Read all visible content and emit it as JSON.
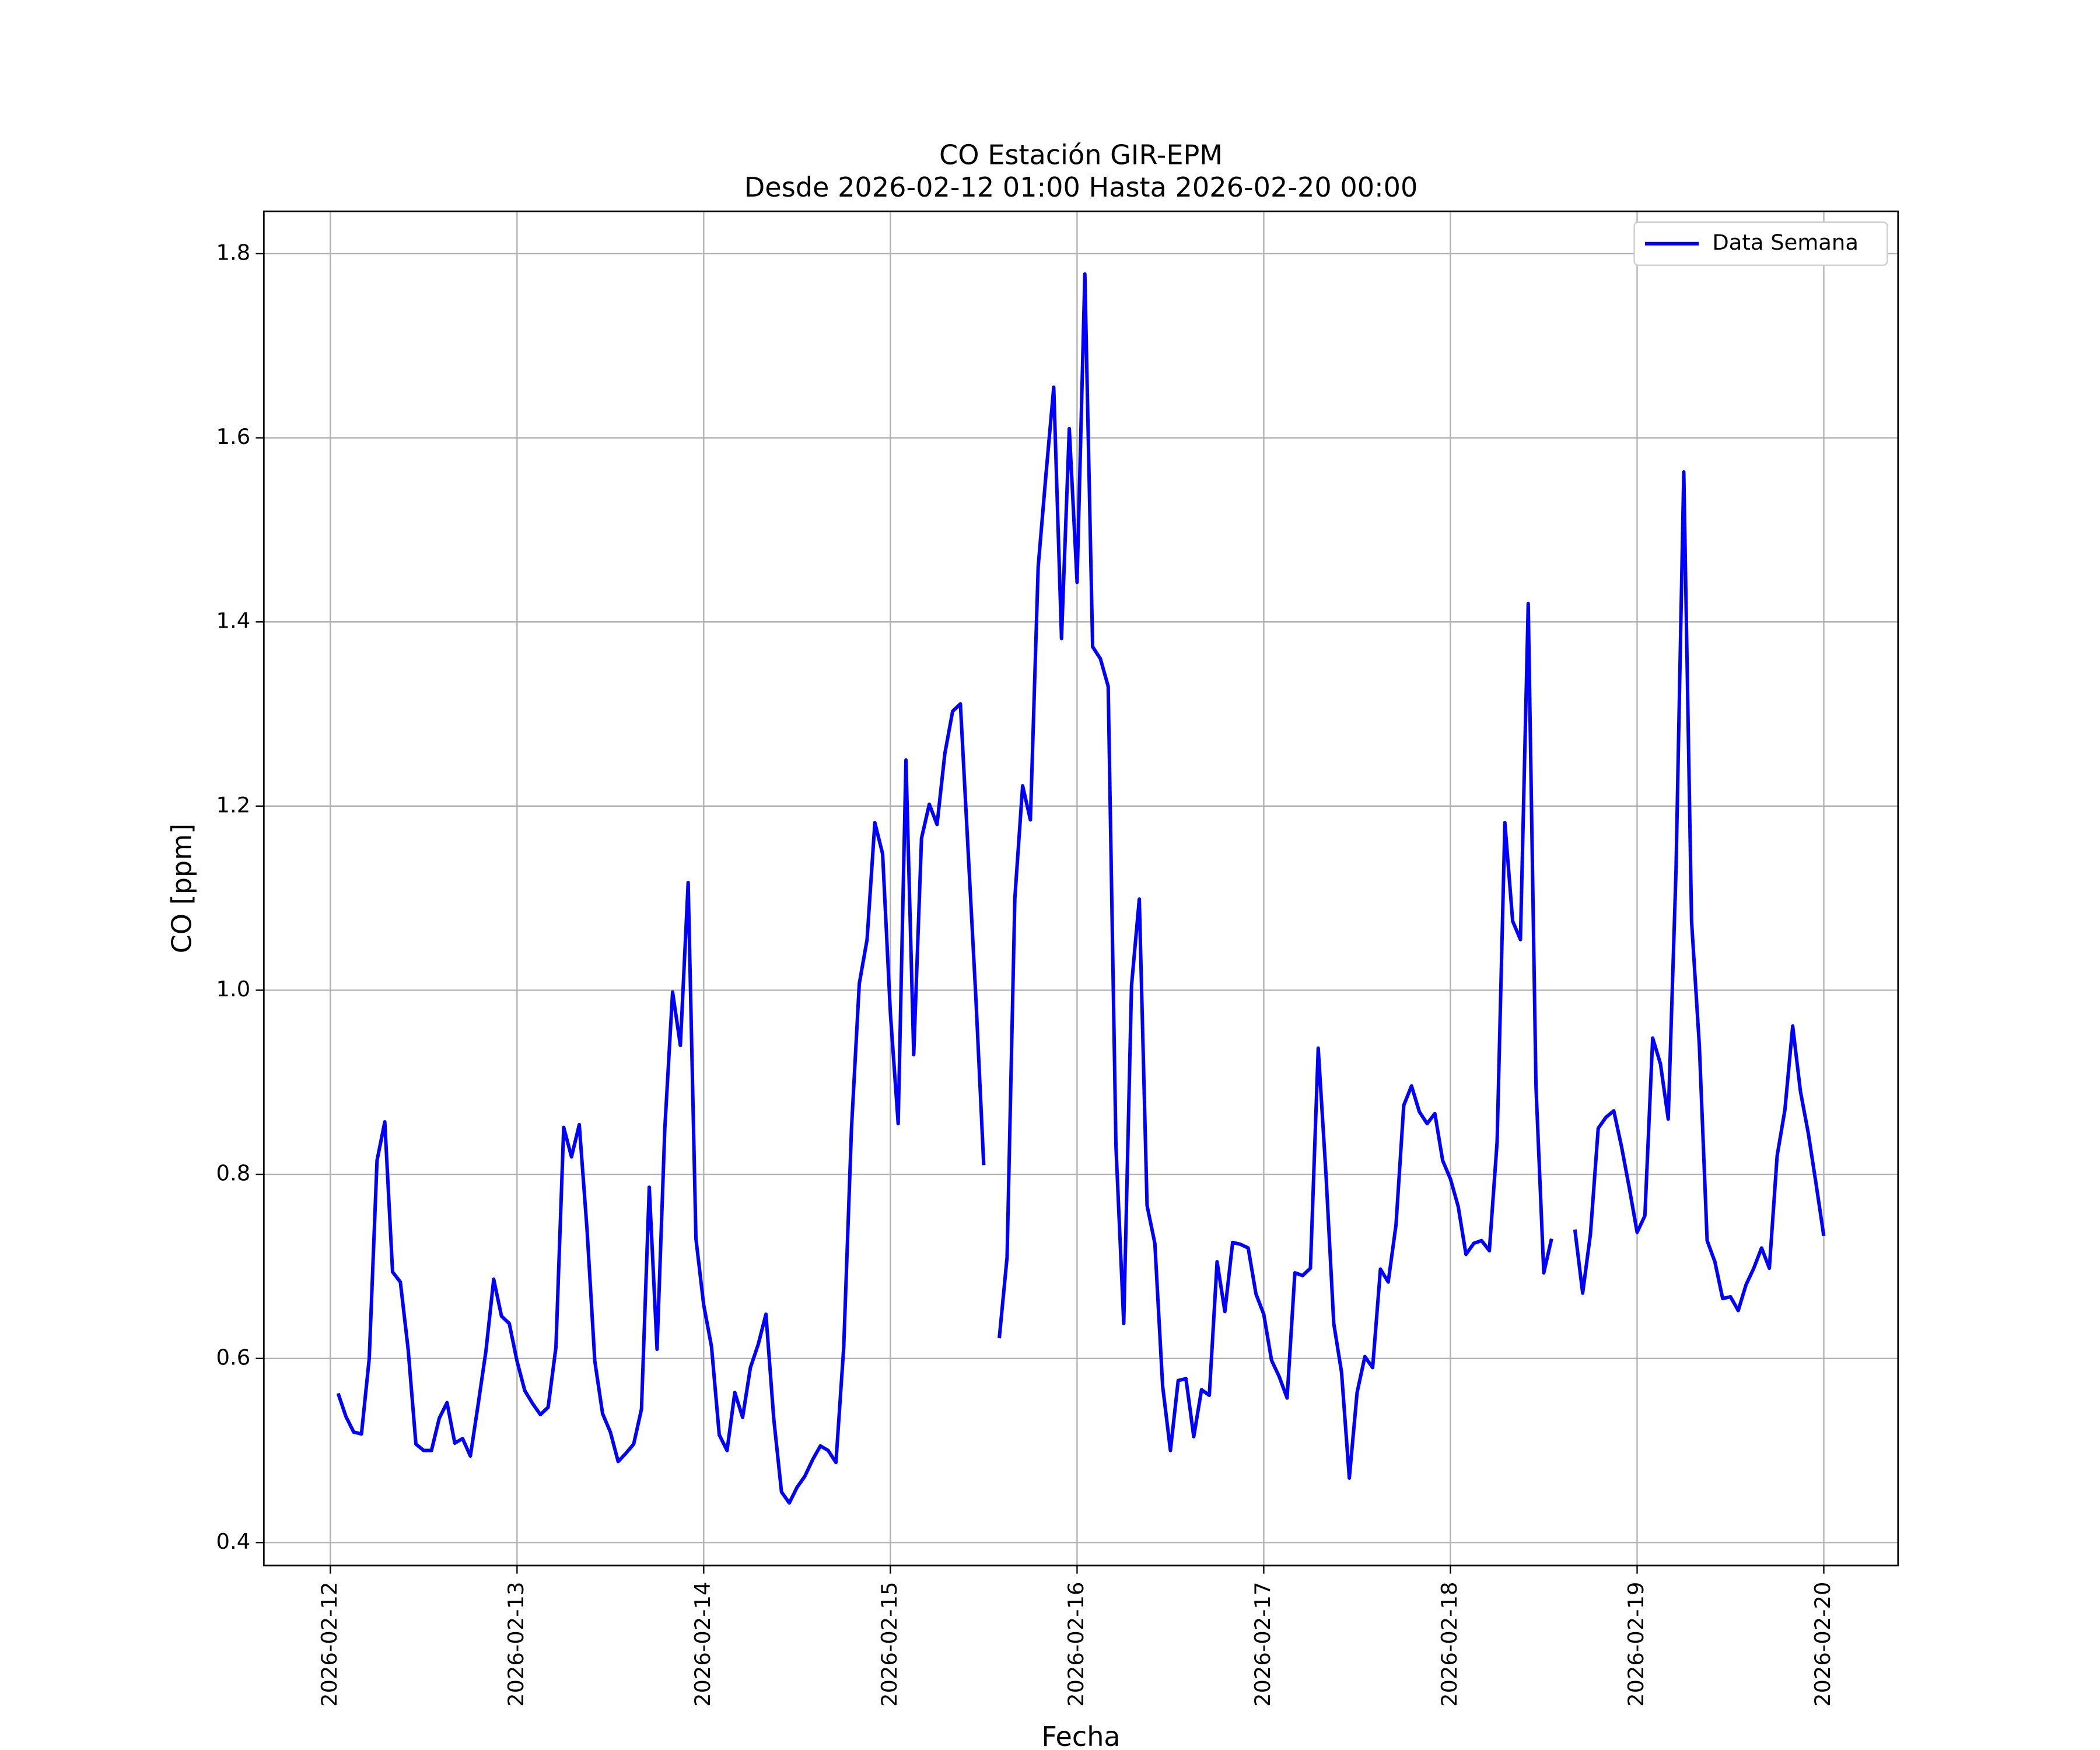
{
  "chart_data": {
    "type": "line",
    "title": "CO Estación GIR-EPM",
    "subtitle": "Desde 2026-02-12 01:00 Hasta 2026-02-20 00:00",
    "x_label": "Fecha",
    "y_label": "CO [ppm]",
    "grid": true,
    "legend": "upper right",
    "xlim": [
      "2026-02-11 15:27",
      "2026-02-20 09:33"
    ],
    "xticks": [
      "2026-02-12",
      "2026-02-13",
      "2026-02-14",
      "2026-02-15",
      "2026-02-16",
      "2026-02-17",
      "2026-02-18",
      "2026-02-19",
      "2026-02-20"
    ],
    "ylim": [
      0.375,
      1.846
    ],
    "yticks": [
      0.4,
      0.6,
      0.8,
      {
        "value": 1,
        "label": "1.0"
      },
      1.2,
      1.4,
      1.6,
      1.8
    ],
    "x": [
      "2026-02-12 01:00",
      "2026-02-12 02:00",
      "2026-02-12 03:00",
      "2026-02-12 04:00",
      "2026-02-12 05:00",
      "2026-02-12 06:00",
      "2026-02-12 07:00",
      "2026-02-12 08:00",
      "2026-02-12 09:00",
      "2026-02-12 10:00",
      "2026-02-12 11:00",
      "2026-02-12 12:00",
      "2026-02-12 13:00",
      "2026-02-12 14:00",
      "2026-02-12 15:00",
      "2026-02-12 16:00",
      "2026-02-12 17:00",
      "2026-02-12 18:00",
      "2026-02-12 19:00",
      "2026-02-12 20:00",
      "2026-02-12 21:00",
      "2026-02-12 22:00",
      "2026-02-12 23:00",
      "2026-02-13 00:00",
      "2026-02-13 01:00",
      "2026-02-13 02:00",
      "2026-02-13 03:00",
      "2026-02-13 04:00",
      "2026-02-13 05:00",
      "2026-02-13 06:00",
      "2026-02-13 07:00",
      "2026-02-13 08:00",
      "2026-02-13 09:00",
      "2026-02-13 10:00",
      "2026-02-13 11:00",
      "2026-02-13 12:00",
      "2026-02-13 13:00",
      "2026-02-13 14:00",
      "2026-02-13 15:00",
      "2026-02-13 16:00",
      "2026-02-13 17:00",
      "2026-02-13 18:00",
      "2026-02-13 19:00",
      "2026-02-13 20:00",
      "2026-02-13 21:00",
      "2026-02-13 22:00",
      "2026-02-13 23:00",
      "2026-02-14 00:00",
      "2026-02-14 01:00",
      "2026-02-14 02:00",
      "2026-02-14 03:00",
      "2026-02-14 04:00",
      "2026-02-14 05:00",
      "2026-02-14 06:00",
      "2026-02-14 07:00",
      "2026-02-14 08:00",
      "2026-02-14 09:00",
      "2026-02-14 10:00",
      "2026-02-14 11:00",
      "2026-02-14 12:00",
      "2026-02-14 13:00",
      "2026-02-14 14:00",
      "2026-02-14 15:00",
      "2026-02-14 16:00",
      "2026-02-14 17:00",
      "2026-02-14 18:00",
      "2026-02-14 19:00",
      "2026-02-14 20:00",
      "2026-02-14 21:00",
      "2026-02-14 22:00",
      "2026-02-14 23:00",
      "2026-02-15 00:00",
      "2026-02-15 01:00",
      "2026-02-15 02:00",
      "2026-02-15 03:00",
      "2026-02-15 04:00",
      "2026-02-15 05:00",
      "2026-02-15 06:00",
      "2026-02-15 07:00",
      "2026-02-15 08:00",
      "2026-02-15 09:00",
      "2026-02-15 10:00",
      "2026-02-15 11:00",
      "2026-02-15 12:00",
      "2026-02-15 13:00",
      "2026-02-15 14:00",
      "2026-02-15 15:00",
      "2026-02-15 16:00",
      "2026-02-15 17:00",
      "2026-02-15 18:00",
      "2026-02-15 19:00",
      "2026-02-15 20:00",
      "2026-02-15 21:00",
      "2026-02-15 22:00",
      "2026-02-15 23:00",
      "2026-02-16 00:00",
      "2026-02-16 01:00",
      "2026-02-16 02:00",
      "2026-02-16 03:00",
      "2026-02-16 04:00",
      "2026-02-16 05:00",
      "2026-02-16 06:00",
      "2026-02-16 07:00",
      "2026-02-16 08:00",
      "2026-02-16 09:00",
      "2026-02-16 10:00",
      "2026-02-16 11:00",
      "2026-02-16 12:00",
      "2026-02-16 13:00",
      "2026-02-16 14:00",
      "2026-02-16 15:00",
      "2026-02-16 16:00",
      "2026-02-16 17:00",
      "2026-02-16 18:00",
      "2026-02-16 19:00",
      "2026-02-16 20:00",
      "2026-02-16 21:00",
      "2026-02-16 22:00",
      "2026-02-16 23:00",
      "2026-02-17 00:00",
      "2026-02-17 01:00",
      "2026-02-17 02:00",
      "2026-02-17 03:00",
      "2026-02-17 04:00",
      "2026-02-17 05:00",
      "2026-02-17 06:00",
      "2026-02-17 07:00",
      "2026-02-17 08:00",
      "2026-02-17 09:00",
      "2026-02-17 10:00",
      "2026-02-17 11:00",
      "2026-02-17 12:00",
      "2026-02-17 13:00",
      "2026-02-17 14:00",
      "2026-02-17 15:00",
      "2026-02-17 16:00",
      "2026-02-17 17:00",
      "2026-02-17 18:00",
      "2026-02-17 19:00",
      "2026-02-17 20:00",
      "2026-02-17 21:00",
      "2026-02-17 22:00",
      "2026-02-17 23:00",
      "2026-02-18 00:00",
      "2026-02-18 01:00",
      "2026-02-18 02:00",
      "2026-02-18 03:00",
      "2026-02-18 04:00",
      "2026-02-18 05:00",
      "2026-02-18 06:00",
      "2026-02-18 07:00",
      "2026-02-18 08:00",
      "2026-02-18 09:00",
      "2026-02-18 10:00",
      "2026-02-18 11:00",
      "2026-02-18 12:00",
      "2026-02-18 13:00",
      "2026-02-18 14:00",
      "2026-02-18 15:00",
      "2026-02-18 16:00",
      "2026-02-18 17:00",
      "2026-02-18 18:00",
      "2026-02-18 19:00",
      "2026-02-18 20:00",
      "2026-02-18 21:00",
      "2026-02-18 22:00",
      "2026-02-18 23:00",
      "2026-02-19 00:00",
      "2026-02-19 01:00",
      "2026-02-19 02:00",
      "2026-02-19 03:00",
      "2026-02-19 04:00",
      "2026-02-19 05:00",
      "2026-02-19 06:00",
      "2026-02-19 07:00",
      "2026-02-19 08:00",
      "2026-02-19 09:00",
      "2026-02-19 10:00",
      "2026-02-19 11:00",
      "2026-02-19 12:00",
      "2026-02-19 13:00",
      "2026-02-19 14:00",
      "2026-02-19 15:00",
      "2026-02-19 16:00",
      "2026-02-19 17:00",
      "2026-02-19 18:00",
      "2026-02-19 19:00",
      "2026-02-19 20:00",
      "2026-02-19 21:00",
      "2026-02-19 22:00",
      "2026-02-19 23:00",
      "2026-02-20 00:00"
    ],
    "series": [
      {
        "name": "Data Semana",
        "color": "#0000ff",
        "values": [
          0.562,
          0.537,
          0.52,
          0.518,
          0.6,
          0.815,
          0.857,
          0.694,
          0.683,
          0.61,
          0.507,
          0.5,
          0.5,
          0.535,
          0.552,
          0.508,
          0.513,
          0.494,
          0.55,
          0.608,
          0.686,
          0.646,
          0.638,
          0.597,
          0.565,
          0.551,
          0.539,
          0.547,
          0.612,
          0.851,
          0.819,
          0.854,
          0.74,
          0.597,
          0.54,
          0.52,
          0.488,
          0.497,
          0.507,
          0.545,
          0.786,
          0.61,
          0.85,
          0.998,
          0.94,
          1.117,
          0.73,
          0.658,
          0.613,
          0.517,
          0.5,
          0.563,
          0.536,
          0.59,
          0.615,
          0.648,
          0.535,
          0.455,
          0.443,
          0.46,
          0.472,
          0.49,
          0.505,
          0.5,
          0.487,
          0.612,
          0.85,
          1.007,
          1.055,
          1.182,
          1.148,
          0.975,
          0.855,
          1.25,
          0.93,
          1.165,
          1.202,
          1.18,
          1.257,
          1.303,
          1.311,
          1.15,
          0.99,
          0.81,
          null,
          0.622,
          0.71,
          1.1,
          1.222,
          1.185,
          1.46,
          1.56,
          1.655,
          1.382,
          1.61,
          1.443,
          1.778,
          1.373,
          1.36,
          1.33,
          0.83,
          0.638,
          1.005,
          1.099,
          0.766,
          0.725,
          0.57,
          0.5,
          0.576,
          0.578,
          0.515,
          0.566,
          0.56,
          0.705,
          0.651,
          0.726,
          0.724,
          0.72,
          0.67,
          0.648,
          0.598,
          0.58,
          0.557,
          0.693,
          0.69,
          0.698,
          0.937,
          0.8,
          0.638,
          0.585,
          0.47,
          0.563,
          0.602,
          0.59,
          0.697,
          0.683,
          0.745,
          0.875,
          0.896,
          0.868,
          0.855,
          0.866,
          0.815,
          0.795,
          0.765,
          0.713,
          0.725,
          0.728,
          0.717,
          0.835,
          1.182,
          1.075,
          1.055,
          1.42,
          0.895,
          0.693,
          0.73,
          null,
          null,
          0.74,
          0.671,
          0.735,
          0.85,
          0.862,
          0.869,
          0.83,
          0.785,
          0.737,
          0.755,
          0.948,
          0.92,
          0.86,
          1.13,
          1.563,
          1.075,
          0.94,
          0.728,
          0.705,
          0.665,
          0.667,
          0.652,
          0.68,
          0.698,
          0.72,
          0.698,
          0.82,
          0.87,
          0.961,
          0.89,
          0.845,
          0.79,
          0.733
        ]
      }
    ]
  }
}
